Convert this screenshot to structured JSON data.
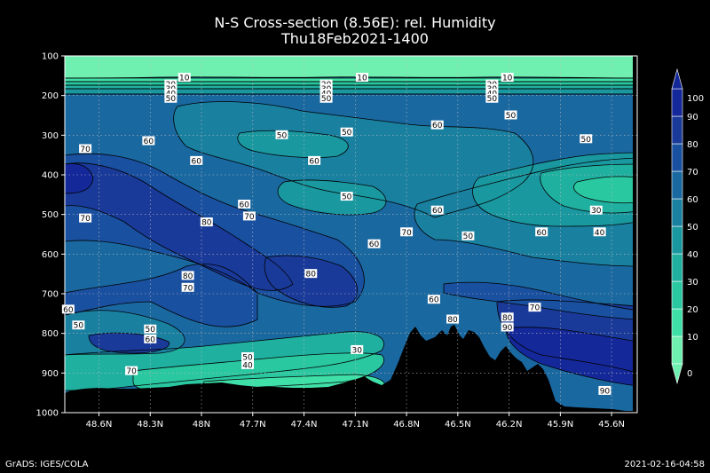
{
  "chart_data": {
    "type": "contour",
    "title": "N-S Cross-section (8.56E): rel. Humidity",
    "subtitle": "Thu18Feb2021-1400",
    "x_ticks": [
      "48.6N",
      "48.3N",
      "48N",
      "47.7N",
      "47.4N",
      "47.1N",
      "46.8N",
      "46.5N",
      "46.2N",
      "45.9N",
      "45.6N"
    ],
    "x_range": [
      48.8,
      45.45
    ],
    "y_ticks": [
      100,
      200,
      300,
      400,
      500,
      600,
      700,
      800,
      900,
      1000
    ],
    "y_range": [
      100,
      1000
    ],
    "grid": true,
    "colorbar": {
      "levels": [
        0,
        10,
        20,
        30,
        40,
        50,
        60,
        70,
        80,
        90,
        100
      ],
      "labels": [
        "0",
        "10",
        "20",
        "30",
        "40",
        "50",
        "60",
        "70",
        "80",
        "90",
        "100"
      ],
      "colors": [
        "#6ff0b0",
        "#3fe0a8",
        "#2ac8a0",
        "#20b0a0",
        "#1a98a0",
        "#1a80a0",
        "#1a68a0",
        "#1a50a0",
        "#1a3a9a",
        "#14289a"
      ],
      "placement": "right"
    },
    "contour_labels": [
      {
        "lat": 48.1,
        "p": 155,
        "label": "10"
      },
      {
        "lat": 48.18,
        "p": 172,
        "label": "20"
      },
      {
        "lat": 48.18,
        "p": 183,
        "label": "30"
      },
      {
        "lat": 48.18,
        "p": 195,
        "label": "40"
      },
      {
        "lat": 48.18,
        "p": 208,
        "label": "50"
      },
      {
        "lat": 47.06,
        "p": 155,
        "label": "10"
      },
      {
        "lat": 47.27,
        "p": 172,
        "label": "20"
      },
      {
        "lat": 47.27,
        "p": 183,
        "label": "30"
      },
      {
        "lat": 47.27,
        "p": 195,
        "label": "40"
      },
      {
        "lat": 47.27,
        "p": 208,
        "label": "50"
      },
      {
        "lat": 46.21,
        "p": 155,
        "label": "10"
      },
      {
        "lat": 46.3,
        "p": 172,
        "label": "20"
      },
      {
        "lat": 46.3,
        "p": 183,
        "label": "30"
      },
      {
        "lat": 46.3,
        "p": 195,
        "label": "40"
      },
      {
        "lat": 46.3,
        "p": 208,
        "label": "50"
      },
      {
        "lat": 46.19,
        "p": 250,
        "label": "50"
      },
      {
        "lat": 46.62,
        "p": 275,
        "label": "60"
      },
      {
        "lat": 48.31,
        "p": 315,
        "label": "60"
      },
      {
        "lat": 47.53,
        "p": 300,
        "label": "50"
      },
      {
        "lat": 47.15,
        "p": 293,
        "label": "50"
      },
      {
        "lat": 45.75,
        "p": 310,
        "label": "50"
      },
      {
        "lat": 48.68,
        "p": 335,
        "label": "70"
      },
      {
        "lat": 48.03,
        "p": 365,
        "label": "60"
      },
      {
        "lat": 47.34,
        "p": 365,
        "label": "60"
      },
      {
        "lat": 47.15,
        "p": 455,
        "label": "50"
      },
      {
        "lat": 47.75,
        "p": 475,
        "label": "60"
      },
      {
        "lat": 47.72,
        "p": 505,
        "label": "70"
      },
      {
        "lat": 48.68,
        "p": 510,
        "label": "70"
      },
      {
        "lat": 47.97,
        "p": 520,
        "label": "80"
      },
      {
        "lat": 46.62,
        "p": 490,
        "label": "60"
      },
      {
        "lat": 45.69,
        "p": 490,
        "label": "30"
      },
      {
        "lat": 46.8,
        "p": 545,
        "label": "70"
      },
      {
        "lat": 46.99,
        "p": 575,
        "label": "60"
      },
      {
        "lat": 46.44,
        "p": 555,
        "label": "50"
      },
      {
        "lat": 46.01,
        "p": 545,
        "label": "60"
      },
      {
        "lat": 45.67,
        "p": 545,
        "label": "40"
      },
      {
        "lat": 48.08,
        "p": 655,
        "label": "80"
      },
      {
        "lat": 48.08,
        "p": 685,
        "label": "70"
      },
      {
        "lat": 47.36,
        "p": 650,
        "label": "80"
      },
      {
        "lat": 46.64,
        "p": 715,
        "label": "60"
      },
      {
        "lat": 46.05,
        "p": 735,
        "label": "70"
      },
      {
        "lat": 48.78,
        "p": 740,
        "label": "60"
      },
      {
        "lat": 48.72,
        "p": 780,
        "label": "50"
      },
      {
        "lat": 48.3,
        "p": 790,
        "label": "50"
      },
      {
        "lat": 48.3,
        "p": 815,
        "label": "60"
      },
      {
        "lat": 46.53,
        "p": 765,
        "label": "80"
      },
      {
        "lat": 46.21,
        "p": 760,
        "label": "80"
      },
      {
        "lat": 46.21,
        "p": 785,
        "label": "90"
      },
      {
        "lat": 47.09,
        "p": 842,
        "label": "30"
      },
      {
        "lat": 47.73,
        "p": 860,
        "label": "50"
      },
      {
        "lat": 47.73,
        "p": 880,
        "label": "40"
      },
      {
        "lat": 48.41,
        "p": 895,
        "label": "70"
      },
      {
        "lat": 45.64,
        "p": 945,
        "label": "90"
      }
    ]
  },
  "footer": {
    "left": "GrADS: IGES/COLA",
    "right": "2021-02-16-04:58"
  }
}
